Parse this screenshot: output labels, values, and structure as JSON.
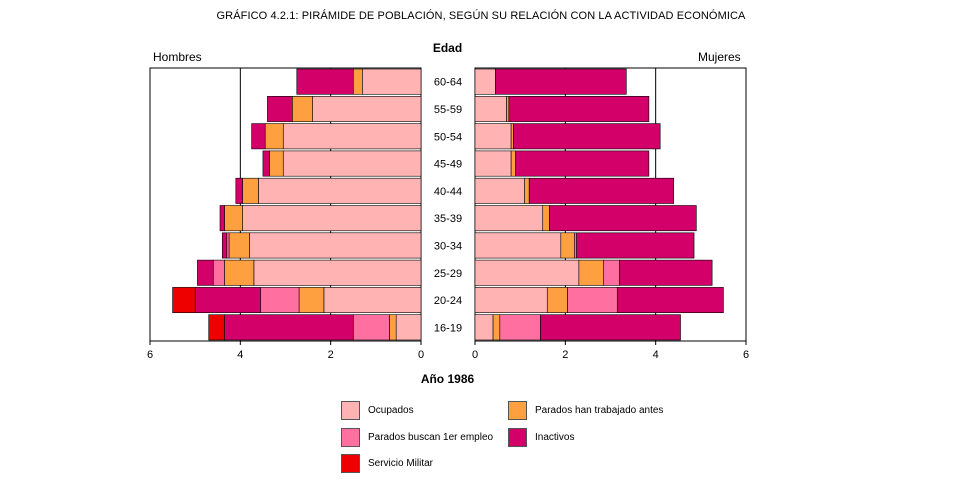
{
  "header": {
    "title": "GRÁFICO 4.2.1: PIRÁMIDE DE POBLACIÓN, SEGÚN SU RELACIÓN CON LA ACTIVIDAD ECONÓMICA",
    "left_label": "Hombres",
    "right_label": "Mujeres",
    "center_label": "Edad",
    "year_label": "Año 1986"
  },
  "legend": [
    {
      "label": "Ocupados",
      "color": "#ffb3b3"
    },
    {
      "label": "Parados han trabajado antes",
      "color": "#ffa040"
    },
    {
      "label": "Parados buscan 1er empleo",
      "color": "#ff6fa0"
    },
    {
      "label": "Inactivos",
      "color": "#d4006a"
    },
    {
      "label": "Servicio Militar",
      "color": "#ee0000"
    }
  ],
  "chart_data": {
    "type": "bar",
    "orientation": "horizontal population pyramid",
    "categories": [
      "60-64",
      "55-59",
      "50-54",
      "45-49",
      "40-44",
      "35-39",
      "30-34",
      "25-29",
      "20-24",
      "16-19"
    ],
    "xlim": [
      0,
      6
    ],
    "xticks": [
      "0",
      "2",
      "4",
      "6"
    ],
    "hombres": {
      "series": [
        {
          "name": "Ocupados",
          "values": [
            1.3,
            2.4,
            3.05,
            3.05,
            3.6,
            3.95,
            3.8,
            3.7,
            2.15,
            0.55
          ]
        },
        {
          "name": "Parados han trabajado antes",
          "values": [
            0.2,
            0.45,
            0.4,
            0.3,
            0.35,
            0.4,
            0.45,
            0.65,
            0.55,
            0.15
          ]
        },
        {
          "name": "Parados buscan 1er empleo",
          "values": [
            0,
            0,
            0,
            0,
            0,
            0,
            0.05,
            0.25,
            0.85,
            0.8
          ]
        },
        {
          "name": "Inactivos",
          "values": [
            1.25,
            0.55,
            0.3,
            0.15,
            0.15,
            0.1,
            0.1,
            0.35,
            1.45,
            2.85
          ]
        },
        {
          "name": "Servicio Militar",
          "values": [
            0,
            0,
            0,
            0,
            0,
            0,
            0,
            0,
            0.5,
            0.35
          ]
        }
      ]
    },
    "mujeres": {
      "series": [
        {
          "name": "Ocupados",
          "values": [
            0.45,
            0.7,
            0.8,
            0.8,
            1.1,
            1.5,
            1.9,
            2.3,
            1.6,
            0.4
          ]
        },
        {
          "name": "Parados han trabajado antes",
          "values": [
            0,
            0.05,
            0.05,
            0.1,
            0.1,
            0.15,
            0.3,
            0.55,
            0.45,
            0.15
          ]
        },
        {
          "name": "Parados buscan 1er empleo",
          "values": [
            0,
            0,
            0,
            0,
            0,
            0,
            0.05,
            0.35,
            1.1,
            0.9
          ]
        },
        {
          "name": "Inactivos",
          "values": [
            2.9,
            3.1,
            3.25,
            2.95,
            3.2,
            3.25,
            2.6,
            2.05,
            2.35,
            3.1
          ]
        }
      ]
    }
  }
}
